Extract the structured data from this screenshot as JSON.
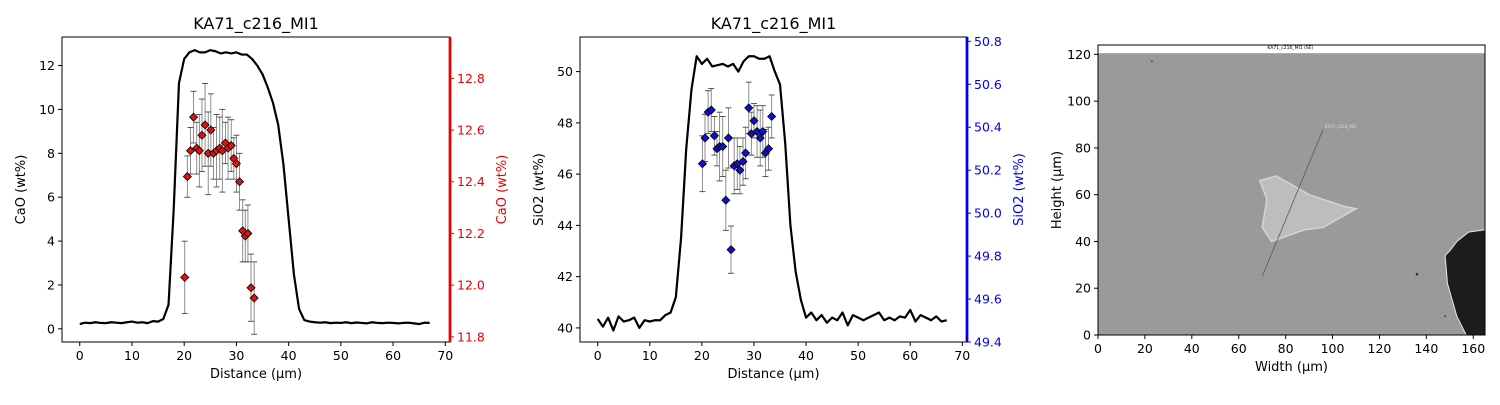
{
  "chart_data": [
    {
      "type": "line",
      "title": "KA71_c216_MI1",
      "xlabel": "Distance (µm)",
      "ylabel": "CaO (wt%)",
      "y2label": "CaO (wt%)",
      "xlim": [
        -3.4,
        70.9
      ],
      "ylim": [
        -0.6,
        13.3
      ],
      "y2lim": [
        11.78,
        12.96
      ],
      "xticks": [
        0,
        10,
        20,
        30,
        40,
        50,
        60,
        70
      ],
      "yticks": [
        0,
        2,
        4,
        6,
        8,
        10,
        12
      ],
      "y2ticks": [
        11.8,
        12.0,
        12.2,
        12.4,
        12.6,
        12.8
      ],
      "colors": {
        "line": "#000000",
        "marker": "#dd1111",
        "axis2": "#ee0000",
        "errorbar": "#808080"
      },
      "series": [
        {
          "axis": "left",
          "x": [
            0,
            1,
            2,
            3,
            4,
            5,
            6,
            7,
            8,
            9,
            10,
            11,
            12,
            13,
            14,
            15,
            16,
            17,
            18,
            19,
            20,
            21,
            22,
            23,
            24,
            25,
            26,
            27,
            28,
            29,
            30,
            31,
            32,
            33,
            34,
            35,
            36,
            37,
            38,
            39,
            40,
            41,
            42,
            43,
            44,
            45,
            46,
            47,
            48,
            49,
            50,
            51,
            52,
            53,
            54,
            55,
            56,
            57,
            58,
            59,
            60,
            61,
            62,
            63,
            64,
            65,
            66,
            67
          ],
          "values": [
            0.22,
            0.28,
            0.26,
            0.3,
            0.27,
            0.26,
            0.3,
            0.28,
            0.26,
            0.3,
            0.33,
            0.28,
            0.3,
            0.26,
            0.35,
            0.33,
            0.45,
            1.1,
            5.5,
            11.2,
            12.3,
            12.6,
            12.7,
            12.6,
            12.6,
            12.7,
            12.65,
            12.55,
            12.6,
            12.55,
            12.6,
            12.5,
            12.5,
            12.3,
            12.0,
            11.6,
            11.0,
            10.3,
            9.3,
            7.5,
            5.0,
            2.5,
            0.9,
            0.4,
            0.33,
            0.3,
            0.28,
            0.3,
            0.26,
            0.28,
            0.27,
            0.3,
            0.26,
            0.29,
            0.27,
            0.25,
            0.3,
            0.27,
            0.26,
            0.28,
            0.27,
            0.25,
            0.27,
            0.28,
            0.25,
            0.22,
            0.28,
            0.27
          ]
        },
        {
          "axis": "right",
          "x": [
            20.1,
            20.6,
            21.2,
            21.8,
            22.4,
            22.9,
            23.4,
            24.0,
            24.6,
            25.1,
            25.6,
            26.2,
            26.8,
            27.3,
            27.9,
            28.4,
            29.0,
            29.5,
            30.0,
            30.6,
            31.2,
            31.7,
            32.2,
            32.8,
            33.4
          ],
          "values": [
            12.03,
            12.42,
            12.52,
            12.65,
            12.53,
            12.52,
            12.58,
            12.62,
            12.51,
            12.6,
            12.51,
            12.52,
            12.53,
            12.52,
            12.55,
            12.53,
            12.54,
            12.49,
            12.47,
            12.4,
            12.21,
            12.19,
            12.2,
            11.99,
            11.95
          ],
          "errors": [
            0.14,
            0.08,
            0.09,
            0.1,
            0.1,
            0.14,
            0.14,
            0.16,
            0.16,
            0.14,
            0.1,
            0.14,
            0.12,
            0.16,
            0.08,
            0.12,
            0.1,
            0.08,
            0.11,
            0.11,
            0.12,
            0.1,
            0.11,
            0.13,
            0.14
          ]
        }
      ]
    },
    {
      "type": "line",
      "title": "KA71_c216_MI1",
      "xlabel": "Distance (µm)",
      "ylabel": "SiO2 (wt%)",
      "y2label": "SiO2 (wt%)",
      "xlim": [
        -3.4,
        70.9
      ],
      "ylim": [
        39.45,
        51.35
      ],
      "y2lim": [
        49.4,
        50.82
      ],
      "xticks": [
        0,
        10,
        20,
        30,
        40,
        50,
        60,
        70
      ],
      "yticks": [
        40,
        42,
        44,
        46,
        48,
        50
      ],
      "y2ticks": [
        49.4,
        49.6,
        49.8,
        50.0,
        50.2,
        50.4,
        50.6,
        50.8
      ],
      "colors": {
        "line": "#000000",
        "marker": "#1010cc",
        "axis2": "#0000ee",
        "errorbar": "#808080"
      },
      "series": [
        {
          "axis": "left",
          "x": [
            0,
            1,
            2,
            3,
            4,
            5,
            6,
            7,
            8,
            9,
            10,
            11,
            12,
            13,
            14,
            15,
            16,
            17,
            18,
            19,
            20,
            21,
            22,
            23,
            24,
            25,
            26,
            27,
            28,
            29,
            30,
            31,
            32,
            33,
            34,
            35,
            36,
            37,
            38,
            39,
            40,
            41,
            42,
            43,
            44,
            45,
            46,
            47,
            48,
            49,
            50,
            51,
            52,
            53,
            54,
            55,
            56,
            57,
            58,
            59,
            60,
            61,
            62,
            63,
            64,
            65,
            66,
            67
          ],
          "values": [
            40.35,
            40.05,
            40.4,
            39.9,
            40.45,
            40.25,
            40.3,
            40.4,
            40.0,
            40.3,
            40.25,
            40.3,
            40.3,
            40.5,
            40.6,
            41.2,
            43.5,
            47.0,
            49.3,
            50.6,
            50.3,
            50.5,
            50.2,
            50.25,
            50.3,
            50.2,
            50.3,
            50.0,
            50.4,
            50.6,
            50.6,
            50.5,
            50.5,
            50.6,
            50.0,
            49.5,
            47.2,
            44.0,
            42.2,
            41.1,
            40.4,
            40.6,
            40.3,
            40.5,
            40.2,
            40.4,
            40.3,
            40.6,
            40.1,
            40.5,
            40.4,
            40.3,
            40.4,
            40.5,
            40.6,
            40.3,
            40.4,
            40.3,
            40.45,
            40.4,
            40.7,
            40.25,
            40.5,
            40.4,
            40.3,
            40.45,
            40.25,
            40.3
          ]
        },
        {
          "axis": "right",
          "x": [
            20.1,
            20.6,
            21.2,
            21.8,
            22.4,
            22.9,
            23.4,
            24.0,
            24.6,
            25.1,
            25.6,
            26.2,
            26.8,
            27.3,
            27.9,
            28.4,
            29.0,
            29.5,
            30.0,
            30.6,
            31.2,
            31.7,
            32.2,
            32.8,
            33.4
          ],
          "values": [
            50.23,
            50.35,
            50.47,
            50.48,
            50.36,
            50.3,
            50.31,
            50.31,
            50.06,
            50.35,
            49.83,
            50.22,
            50.23,
            50.2,
            50.24,
            50.28,
            50.49,
            50.37,
            50.43,
            50.38,
            50.35,
            50.38,
            50.28,
            50.3,
            50.45
          ],
          "errors": [
            0.13,
            0.11,
            0.1,
            0.1,
            0.09,
            0.08,
            0.16,
            0.14,
            0.14,
            0.14,
            0.11,
            0.13,
            0.12,
            0.11,
            0.11,
            0.12,
            0.12,
            0.1,
            0.08,
            0.12,
            0.13,
            0.12,
            0.11,
            0.1,
            0.1
          ]
        }
      ]
    },
    {
      "type": "image",
      "xlabel": "Width (µm)",
      "ylabel": "Height (µm)",
      "xlim": [
        0,
        165
      ],
      "ylim": [
        0,
        124
      ],
      "xticks": [
        0,
        20,
        40,
        60,
        80,
        100,
        120,
        140,
        160
      ],
      "yticks": [
        0,
        20,
        40,
        60,
        80,
        100,
        120
      ],
      "image_caption": "KA71_c216_MI1 (SE)",
      "line_label": "KA71_c216_MI1",
      "transect": [
        [
          70,
          25
        ],
        [
          96,
          88
        ]
      ],
      "colors": {
        "matrix": "#9a9a9a",
        "inclusion": "#bdbdbd",
        "dark_phase": "#1c1c1c"
      }
    }
  ]
}
